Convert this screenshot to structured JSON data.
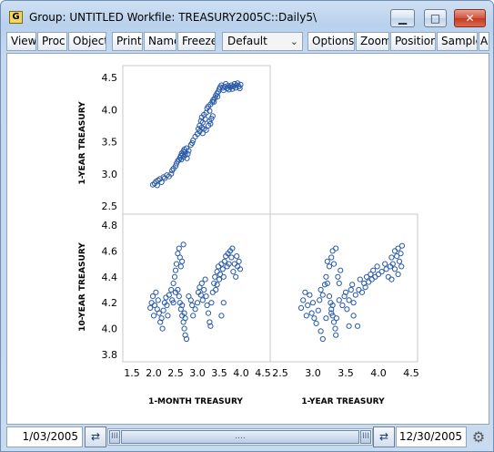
{
  "window": {
    "app_icon_letter": "G",
    "title": "Group: UNTITLED   Workfile: TREASURY2005C::Daily5\\",
    "controls": {
      "minimize": "▁",
      "maximize": "□",
      "close": "✕"
    }
  },
  "toolbar": {
    "buttons": [
      "View",
      "Proc",
      "Object",
      "Print",
      "Name",
      "Freeze",
      "Options",
      "Zoom",
      "Position",
      "Sample",
      "A"
    ],
    "template_select": {
      "value": "Default"
    }
  },
  "chart_data": {
    "type": "scatter",
    "layout": "lower-triangle scatterplot matrix",
    "variables": [
      "1-MONTH TREASURY",
      "1-YEAR TREASURY",
      "10-YEAR TREASURY"
    ],
    "row_labels": [
      "1-YEAR TREASURY",
      "10-YEAR TREASURY"
    ],
    "column_labels": [
      "1-MONTH TREASURY",
      "1-YEAR TREASURY"
    ],
    "marker": "open-circle",
    "marker_color": "#2a5aa8",
    "grid": false,
    "panels": [
      {
        "x_var": "1-MONTH TREASURY",
        "y_var": "1-YEAR TREASURY",
        "xlim": [
          1.5,
          4.5
        ],
        "ylim": [
          2.5,
          4.5
        ],
        "x_ticks": [
          "1.5",
          "2.0",
          "2.5",
          "3.0",
          "3.5",
          "4.0",
          "4.5"
        ],
        "y_ticks": [
          "2.5",
          "3.0",
          "3.5",
          "4.0",
          "4.5"
        ],
        "points": [
          [
            1.98,
            2.83
          ],
          [
            2.02,
            2.85
          ],
          [
            2.05,
            2.88
          ],
          [
            2.08,
            2.82
          ],
          [
            2.1,
            2.9
          ],
          [
            2.14,
            2.92
          ],
          [
            2.18,
            2.87
          ],
          [
            2.22,
            2.95
          ],
          [
            2.25,
            2.93
          ],
          [
            2.3,
            2.98
          ],
          [
            2.35,
            2.96
          ],
          [
            2.4,
            3.0
          ],
          [
            2.42,
            3.05
          ],
          [
            2.45,
            3.08
          ],
          [
            2.5,
            3.12
          ],
          [
            2.52,
            3.16
          ],
          [
            2.55,
            3.2
          ],
          [
            2.58,
            3.22
          ],
          [
            2.6,
            3.25
          ],
          [
            2.62,
            3.28
          ],
          [
            2.64,
            3.32
          ],
          [
            2.66,
            3.3
          ],
          [
            2.68,
            3.35
          ],
          [
            2.7,
            3.38
          ],
          [
            2.72,
            3.34
          ],
          [
            2.75,
            3.4
          ],
          [
            2.78,
            3.31
          ],
          [
            2.8,
            3.36
          ],
          [
            2.63,
            3.22
          ],
          [
            2.68,
            3.26
          ],
          [
            2.72,
            3.29
          ],
          [
            2.76,
            3.24
          ],
          [
            2.85,
            3.45
          ],
          [
            2.9,
            3.52
          ],
          [
            2.95,
            3.58
          ],
          [
            3.0,
            3.62
          ],
          [
            3.02,
            3.7
          ],
          [
            3.05,
            3.75
          ],
          [
            3.08,
            3.82
          ],
          [
            3.1,
            3.88
          ],
          [
            3.12,
            3.8
          ],
          [
            3.15,
            3.92
          ],
          [
            3.18,
            3.85
          ],
          [
            3.2,
            3.95
          ],
          [
            3.22,
            4.02
          ],
          [
            3.25,
            4.05
          ],
          [
            3.28,
            3.98
          ],
          [
            3.3,
            4.08
          ],
          [
            3.05,
            3.66
          ],
          [
            3.1,
            3.72
          ],
          [
            3.15,
            3.7
          ],
          [
            3.12,
            3.63
          ],
          [
            3.2,
            3.68
          ],
          [
            3.25,
            3.75
          ],
          [
            3.28,
            3.82
          ],
          [
            3.3,
            3.78
          ],
          [
            3.32,
            3.86
          ],
          [
            3.35,
            3.9
          ],
          [
            3.38,
            4.12
          ],
          [
            3.4,
            4.18
          ],
          [
            3.42,
            4.22
          ],
          [
            3.45,
            4.25
          ],
          [
            3.48,
            4.28
          ],
          [
            3.5,
            4.32
          ],
          [
            3.52,
            4.35
          ],
          [
            3.55,
            4.38
          ],
          [
            3.58,
            4.34
          ],
          [
            3.6,
            4.3
          ],
          [
            3.62,
            4.36
          ],
          [
            3.65,
            4.4
          ],
          [
            3.68,
            4.33
          ],
          [
            3.7,
            4.37
          ],
          [
            3.72,
            4.31
          ],
          [
            3.75,
            4.35
          ],
          [
            3.78,
            4.38
          ],
          [
            3.8,
            4.32
          ],
          [
            3.82,
            4.36
          ],
          [
            3.85,
            4.4
          ],
          [
            3.88,
            4.34
          ],
          [
            3.9,
            4.38
          ],
          [
            3.92,
            4.41
          ],
          [
            3.95,
            4.36
          ],
          [
            3.97,
            4.33
          ],
          [
            3.99,
            4.39
          ],
          [
            3.46,
            4.2
          ],
          [
            3.34,
            4.12
          ],
          [
            3.36,
            4.15
          ],
          [
            2.88,
            3.48
          ]
        ]
      },
      {
        "x_var": "1-MONTH TREASURY",
        "y_var": "10-YEAR TREASURY",
        "xlim": [
          1.5,
          4.5
        ],
        "ylim": [
          3.8,
          4.8
        ],
        "x_ticks": [
          "1.5",
          "2.0",
          "2.5",
          "3.0",
          "3.5",
          "4.0",
          "4.5"
        ],
        "y_ticks": [
          "3.8",
          "4.0",
          "4.2",
          "4.4",
          "4.6",
          "4.8"
        ],
        "points": [
          [
            1.92,
            4.16
          ],
          [
            1.95,
            4.2
          ],
          [
            1.98,
            4.25
          ],
          [
            2.0,
            4.1
          ],
          [
            2.02,
            4.18
          ],
          [
            2.05,
            4.28
          ],
          [
            2.08,
            4.15
          ],
          [
            2.1,
            4.22
          ],
          [
            2.12,
            4.12
          ],
          [
            2.15,
            4.05
          ],
          [
            2.18,
            4.08
          ],
          [
            2.2,
            4.0
          ],
          [
            2.22,
            4.14
          ],
          [
            2.25,
            4.2
          ],
          [
            2.28,
            4.24
          ],
          [
            2.3,
            4.18
          ],
          [
            2.35,
            4.26
          ],
          [
            2.4,
            4.3
          ],
          [
            2.42,
            4.22
          ],
          [
            2.45,
            4.35
          ],
          [
            2.48,
            4.4
          ],
          [
            2.5,
            4.45
          ],
          [
            2.52,
            4.5
          ],
          [
            2.55,
            4.58
          ],
          [
            2.58,
            4.62
          ],
          [
            2.6,
            4.55
          ],
          [
            2.62,
            4.48
          ],
          [
            2.65,
            4.52
          ],
          [
            2.55,
            4.3
          ],
          [
            2.58,
            4.25
          ],
          [
            2.6,
            4.2
          ],
          [
            2.62,
            4.15
          ],
          [
            2.65,
            4.1
          ],
          [
            2.68,
            4.05
          ],
          [
            2.7,
            4.0
          ],
          [
            2.72,
            3.95
          ],
          [
            2.75,
            3.92
          ],
          [
            2.7,
            4.12
          ],
          [
            2.65,
            4.18
          ],
          [
            2.72,
            4.08
          ],
          [
            2.8,
            4.25
          ],
          [
            2.85,
            4.22
          ],
          [
            2.88,
            4.18
          ],
          [
            2.9,
            4.1
          ],
          [
            2.95,
            4.15
          ],
          [
            3.0,
            4.2
          ],
          [
            3.02,
            4.28
          ],
          [
            3.05,
            4.32
          ],
          [
            3.08,
            4.26
          ],
          [
            3.1,
            4.35
          ],
          [
            3.12,
            4.22
          ],
          [
            3.15,
            4.3
          ],
          [
            3.18,
            4.38
          ],
          [
            3.2,
            4.25
          ],
          [
            3.22,
            4.18
          ],
          [
            3.25,
            4.12
          ],
          [
            3.28,
            4.05
          ],
          [
            3.3,
            4.02
          ],
          [
            3.32,
            4.2
          ],
          [
            3.35,
            4.28
          ],
          [
            3.38,
            4.35
          ],
          [
            3.4,
            4.4
          ],
          [
            3.42,
            4.3
          ],
          [
            3.45,
            4.44
          ],
          [
            3.48,
            4.48
          ],
          [
            3.5,
            4.38
          ],
          [
            3.52,
            4.42
          ],
          [
            3.55,
            4.5
          ],
          [
            3.58,
            4.46
          ],
          [
            3.6,
            4.4
          ],
          [
            3.62,
            4.52
          ],
          [
            3.65,
            4.56
          ],
          [
            3.68,
            4.48
          ],
          [
            3.7,
            4.58
          ],
          [
            3.72,
            4.5
          ],
          [
            3.75,
            4.6
          ],
          [
            3.78,
            4.55
          ],
          [
            3.8,
            4.62
          ],
          [
            3.82,
            4.44
          ],
          [
            3.85,
            4.5
          ],
          [
            3.88,
            4.4
          ],
          [
            3.9,
            4.56
          ],
          [
            3.92,
            4.48
          ],
          [
            3.95,
            4.52
          ],
          [
            3.98,
            4.46
          ],
          [
            2.45,
            4.2
          ],
          [
            2.5,
            4.28
          ],
          [
            2.68,
            4.65
          ],
          [
            3.55,
            4.1
          ],
          [
            3.6,
            4.2
          ],
          [
            3.45,
            4.34
          ],
          [
            2.32,
            4.1
          ]
        ]
      },
      {
        "x_var": "1-YEAR TREASURY",
        "y_var": "10-YEAR TREASURY",
        "xlim": [
          2.5,
          4.5
        ],
        "ylim": [
          3.8,
          4.8
        ],
        "x_ticks": [
          "2.5",
          "3.0",
          "3.5",
          "4.0",
          "4.5"
        ],
        "y_ticks": [],
        "points": [
          [
            2.82,
            4.16
          ],
          [
            2.85,
            4.22
          ],
          [
            2.88,
            4.28
          ],
          [
            2.9,
            4.1
          ],
          [
            2.92,
            4.18
          ],
          [
            2.95,
            4.26
          ],
          [
            2.98,
            4.12
          ],
          [
            3.0,
            4.2
          ],
          [
            3.02,
            4.08
          ],
          [
            3.05,
            4.04
          ],
          [
            3.08,
            4.14
          ],
          [
            3.1,
            4.22
          ],
          [
            3.12,
            4.3
          ],
          [
            3.15,
            4.26
          ],
          [
            3.18,
            4.34
          ],
          [
            3.2,
            4.4
          ],
          [
            3.22,
            4.35
          ],
          [
            3.25,
            4.48
          ],
          [
            3.28,
            4.55
          ],
          [
            3.3,
            4.6
          ],
          [
            3.32,
            4.5
          ],
          [
            3.35,
            4.62
          ],
          [
            3.25,
            4.25
          ],
          [
            3.27,
            4.2
          ],
          [
            3.28,
            4.15
          ],
          [
            3.3,
            4.1
          ],
          [
            3.32,
            4.05
          ],
          [
            3.34,
            4.0
          ],
          [
            3.35,
            3.95
          ],
          [
            3.3,
            4.18
          ],
          [
            3.28,
            4.12
          ],
          [
            3.36,
            4.08
          ],
          [
            3.4,
            4.22
          ],
          [
            3.45,
            4.18
          ],
          [
            3.48,
            4.25
          ],
          [
            3.5,
            4.28
          ],
          [
            3.52,
            4.15
          ],
          [
            3.55,
            4.22
          ],
          [
            3.58,
            4.3
          ],
          [
            3.6,
            4.34
          ],
          [
            3.62,
            4.2
          ],
          [
            3.65,
            4.26
          ],
          [
            3.68,
            4.02
          ],
          [
            3.7,
            4.3
          ],
          [
            3.72,
            4.38
          ],
          [
            3.75,
            4.28
          ],
          [
            3.78,
            4.35
          ],
          [
            3.8,
            4.32
          ],
          [
            3.82,
            4.4
          ],
          [
            3.85,
            4.36
          ],
          [
            3.88,
            4.42
          ],
          [
            3.9,
            4.38
          ],
          [
            3.92,
            4.45
          ],
          [
            3.95,
            4.4
          ],
          [
            3.98,
            4.48
          ],
          [
            4.0,
            4.42
          ],
          [
            4.05,
            4.44
          ],
          [
            4.1,
            4.5
          ],
          [
            4.12,
            4.46
          ],
          [
            4.15,
            4.4
          ],
          [
            4.18,
            4.48
          ],
          [
            4.2,
            4.55
          ],
          [
            4.22,
            4.5
          ],
          [
            4.25,
            4.6
          ],
          [
            4.28,
            4.56
          ],
          [
            4.3,
            4.62
          ],
          [
            4.32,
            4.52
          ],
          [
            4.34,
            4.58
          ],
          [
            4.35,
            4.48
          ],
          [
            4.36,
            4.64
          ],
          [
            4.3,
            4.42
          ],
          [
            4.25,
            4.46
          ],
          [
            4.2,
            4.38
          ],
          [
            3.42,
            4.45
          ],
          [
            3.4,
            4.35
          ],
          [
            3.38,
            4.4
          ],
          [
            3.22,
            4.52
          ],
          [
            3.2,
            4.08
          ],
          [
            3.55,
            4.02
          ],
          [
            3.62,
            4.1
          ],
          [
            3.12,
            3.98
          ],
          [
            3.15,
            3.92
          ]
        ]
      }
    ]
  },
  "statusbar": {
    "start_date": "1/03/2005",
    "end_date": "12/30/2005",
    "left_nav": "⇄",
    "right_nav": "⇄",
    "thumb_left": "III",
    "thumb_mid": "....",
    "thumb_right": "III",
    "gear": "⚙"
  }
}
